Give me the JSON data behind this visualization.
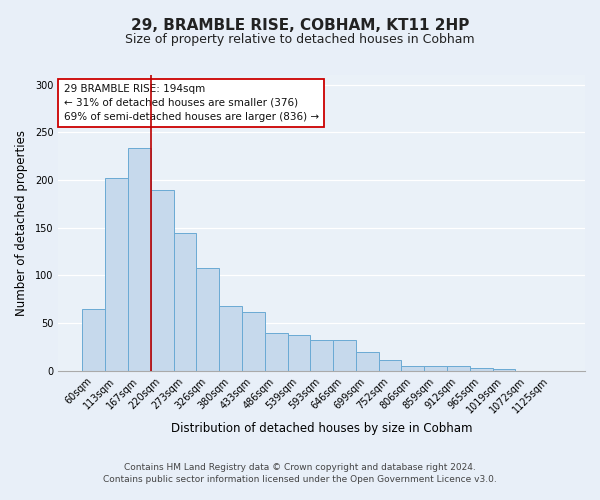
{
  "title": "29, BRAMBLE RISE, COBHAM, KT11 2HP",
  "subtitle": "Size of property relative to detached houses in Cobham",
  "xlabel": "Distribution of detached houses by size in Cobham",
  "ylabel": "Number of detached properties",
  "bar_labels": [
    "60sqm",
    "113sqm",
    "167sqm",
    "220sqm",
    "273sqm",
    "326sqm",
    "380sqm",
    "433sqm",
    "486sqm",
    "539sqm",
    "593sqm",
    "646sqm",
    "699sqm",
    "752sqm",
    "806sqm",
    "859sqm",
    "912sqm",
    "965sqm",
    "1019sqm",
    "1072sqm",
    "1125sqm"
  ],
  "bar_values": [
    65,
    202,
    234,
    190,
    145,
    108,
    68,
    62,
    40,
    38,
    32,
    32,
    20,
    11,
    5,
    5,
    5,
    3,
    2,
    0,
    0
  ],
  "bar_color": "#c6d9ec",
  "bar_edge_color": "#6aaad4",
  "vline_x_idx": 2,
  "vline_color": "#bb0000",
  "annotation_text": "29 BRAMBLE RISE: 194sqm\n← 31% of detached houses are smaller (376)\n69% of semi-detached houses are larger (836) →",
  "annotation_box_color": "#ffffff",
  "annotation_box_edge_color": "#cc0000",
  "ylim": [
    0,
    310
  ],
  "yticks": [
    0,
    50,
    100,
    150,
    200,
    250,
    300
  ],
  "footer1": "Contains HM Land Registry data © Crown copyright and database right 2024.",
  "footer2": "Contains public sector information licensed under the Open Government Licence v3.0.",
  "bg_color": "#e8eff8",
  "plot_bg_color": "#eaf1f8",
  "title_fontsize": 11,
  "subtitle_fontsize": 9,
  "tick_fontsize": 7,
  "label_fontsize": 8.5,
  "footer_fontsize": 6.5
}
